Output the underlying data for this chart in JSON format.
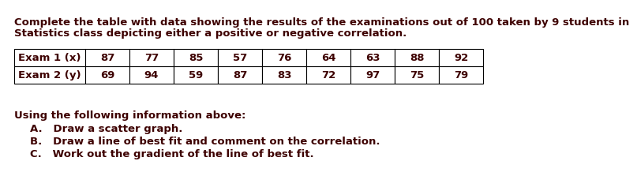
{
  "title_line1": "Complete the table with data showing the results of the examinations out of 100 taken by 9 students in",
  "title_line2": "Statistics class depicting either a positive or negative correlation.",
  "text_color": "#1a0a6e",
  "main_color": "#1a1a8a",
  "title_fontsize": 9.5,
  "row1_label": "Exam 1 (x)",
  "row2_label": "Exam 2 (y)",
  "row1_values": [
    87,
    77,
    85,
    57,
    76,
    64,
    63,
    88,
    92
  ],
  "row2_values": [
    69,
    94,
    59,
    87,
    83,
    72,
    97,
    75,
    79
  ],
  "section_header": "Using the following information above:",
  "items": [
    "A.   Draw a scatter graph.",
    "B.   Draw a line of best fit and comment on the correlation.",
    "C.   Work out the gradient of the line of best fit."
  ],
  "body_fontsize": 9.5,
  "background_color": "#ffffff",
  "dark_red": "#8B0000",
  "navy": "#00008B"
}
